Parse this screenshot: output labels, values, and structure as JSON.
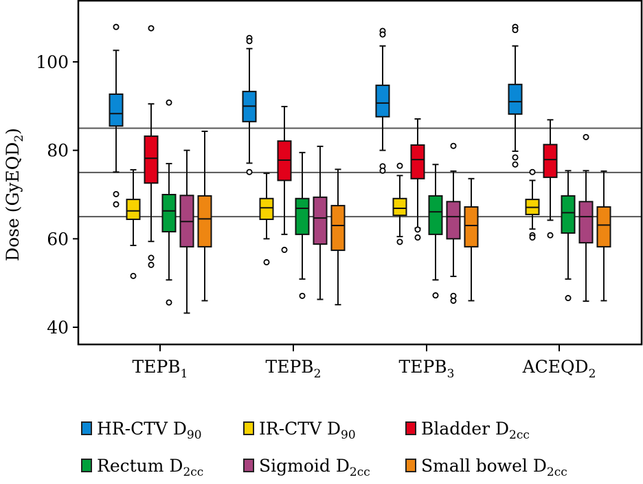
{
  "chart_data": {
    "type": "boxplot",
    "title": "",
    "xlabel": "",
    "ylabel": "Dose (GyEQD",
    "ylabel_sub": "2",
    "ylabel_suffix": ")",
    "ylim": [
      37,
      115
    ],
    "yticks": [
      40,
      60,
      80,
      100
    ],
    "grid": false,
    "reference_lines": [
      85,
      75,
      65
    ],
    "legend_position": "bottom",
    "categories": [
      {
        "label": "TEPB",
        "sub": "1"
      },
      {
        "label": "TEPB",
        "sub": "2"
      },
      {
        "label": "TEPB",
        "sub": "3"
      },
      {
        "label": "ACEQD",
        "sub": "2"
      }
    ],
    "series": [
      {
        "name": "HR-CTV D",
        "sub": "90",
        "color": "#0a88d6",
        "boxes": [
          {
            "whisker_low": 75.1,
            "q1": 85.5,
            "median": 88.3,
            "q3": 92.7,
            "whisker_high": 102.6,
            "outliers": [
              107.9,
              70.1,
              67.8
            ]
          },
          {
            "whisker_low": 77.1,
            "q1": 86.5,
            "median": 90.0,
            "q3": 93.3,
            "whisker_high": 103.0,
            "outliers": [
              105.4,
              104.7,
              75.1
            ]
          },
          {
            "whisker_low": 80.0,
            "q1": 87.6,
            "median": 90.7,
            "q3": 94.7,
            "whisker_high": 103.6,
            "outliers": [
              107.0,
              106.2,
              76.4,
              75.4
            ]
          },
          {
            "whisker_low": 79.8,
            "q1": 88.2,
            "median": 91.0,
            "q3": 94.9,
            "whisker_high": 103.6,
            "outliers": [
              107.9,
              107.2,
              78.4,
              76.8
            ]
          }
        ]
      },
      {
        "name": "IR-CTV D",
        "sub": "90",
        "color": "#f8d300",
        "boxes": [
          {
            "whisker_low": 58.5,
            "q1": 64.4,
            "median": 66.3,
            "q3": 68.9,
            "whisker_high": 75.6,
            "outliers": [
              51.6
            ]
          },
          {
            "whisker_low": 60.0,
            "q1": 64.4,
            "median": 67.0,
            "q3": 69.1,
            "whisker_high": 74.8,
            "outliers": [
              54.7
            ]
          },
          {
            "whisker_low": 60.5,
            "q1": 65.3,
            "median": 66.9,
            "q3": 69.1,
            "whisker_high": 74.3,
            "outliers": [
              76.5,
              59.3
            ]
          },
          {
            "whisker_low": 62.2,
            "q1": 65.5,
            "median": 67.1,
            "q3": 68.9,
            "whisker_high": 73.2,
            "outliers": [
              75.1,
              60.8,
              60.3
            ]
          }
        ]
      },
      {
        "name": "Bladder D",
        "sub": "2cc",
        "color": "#e2001a",
        "boxes": [
          {
            "whisker_low": 59.4,
            "q1": 72.6,
            "median": 78.2,
            "q3": 83.2,
            "whisker_high": 90.5,
            "outliers": [
              107.6,
              55.7,
              54.1
            ]
          },
          {
            "whisker_low": 61.0,
            "q1": 73.2,
            "median": 77.8,
            "q3": 82.1,
            "whisker_high": 89.9,
            "outliers": [
              57.5
            ]
          },
          {
            "whisker_low": 62.4,
            "q1": 73.6,
            "median": 77.9,
            "q3": 81.2,
            "whisker_high": 87.1,
            "outliers": [
              62.1,
              60.3
            ]
          },
          {
            "whisker_low": 64.2,
            "q1": 73.9,
            "median": 77.9,
            "q3": 81.3,
            "whisker_high": 86.9,
            "outliers": [
              60.8
            ]
          }
        ]
      },
      {
        "name": "Rectum D",
        "sub": "2cc",
        "color": "#00a03c",
        "boxes": [
          {
            "whisker_low": 50.7,
            "q1": 61.6,
            "median": 66.3,
            "q3": 70.0,
            "whisker_high": 77.0,
            "outliers": [
              90.8,
              45.6
            ]
          },
          {
            "whisker_low": 50.9,
            "q1": 61.0,
            "median": 66.9,
            "q3": 69.1,
            "whisker_high": 79.5,
            "outliers": [
              47.1
            ]
          },
          {
            "whisker_low": 50.7,
            "q1": 61.0,
            "median": 66.1,
            "q3": 69.7,
            "whisker_high": 76.8,
            "outliers": [
              47.2
            ]
          },
          {
            "whisker_low": 50.9,
            "q1": 61.3,
            "median": 65.9,
            "q3": 69.7,
            "whisker_high": 75.4,
            "outliers": [
              46.6
            ]
          }
        ]
      },
      {
        "name": "Sigmoid D",
        "sub": "2cc",
        "color": "#a8437e",
        "boxes": [
          {
            "whisker_low": 43.2,
            "q1": 58.2,
            "median": 63.9,
            "q3": 69.8,
            "whisker_high": 80.0,
            "outliers": []
          },
          {
            "whisker_low": 46.3,
            "q1": 58.8,
            "median": 64.7,
            "q3": 69.4,
            "whisker_high": 80.9,
            "outliers": []
          },
          {
            "whisker_low": 51.5,
            "q1": 60.0,
            "median": 65.0,
            "q3": 68.4,
            "whisker_high": 75.3,
            "outliers": [
              81.0,
              47.1,
              46.0
            ]
          },
          {
            "whisker_low": 45.9,
            "q1": 59.1,
            "median": 65.0,
            "q3": 68.4,
            "whisker_high": 75.4,
            "outliers": [
              83.0
            ]
          }
        ]
      },
      {
        "name": "Small bowel D",
        "sub": "2cc",
        "color": "#ee8612",
        "boxes": [
          {
            "whisker_low": 46.0,
            "q1": 58.2,
            "median": 64.5,
            "q3": 69.7,
            "whisker_high": 84.3,
            "outliers": []
          },
          {
            "whisker_low": 45.1,
            "q1": 57.4,
            "median": 63.0,
            "q3": 67.5,
            "whisker_high": 75.7,
            "outliers": []
          },
          {
            "whisker_low": 46.0,
            "q1": 58.2,
            "median": 63.0,
            "q3": 67.2,
            "whisker_high": 73.6,
            "outliers": []
          },
          {
            "whisker_low": 46.0,
            "q1": 58.2,
            "median": 63.1,
            "q3": 67.2,
            "whisker_high": 75.3,
            "outliers": []
          }
        ]
      }
    ]
  }
}
